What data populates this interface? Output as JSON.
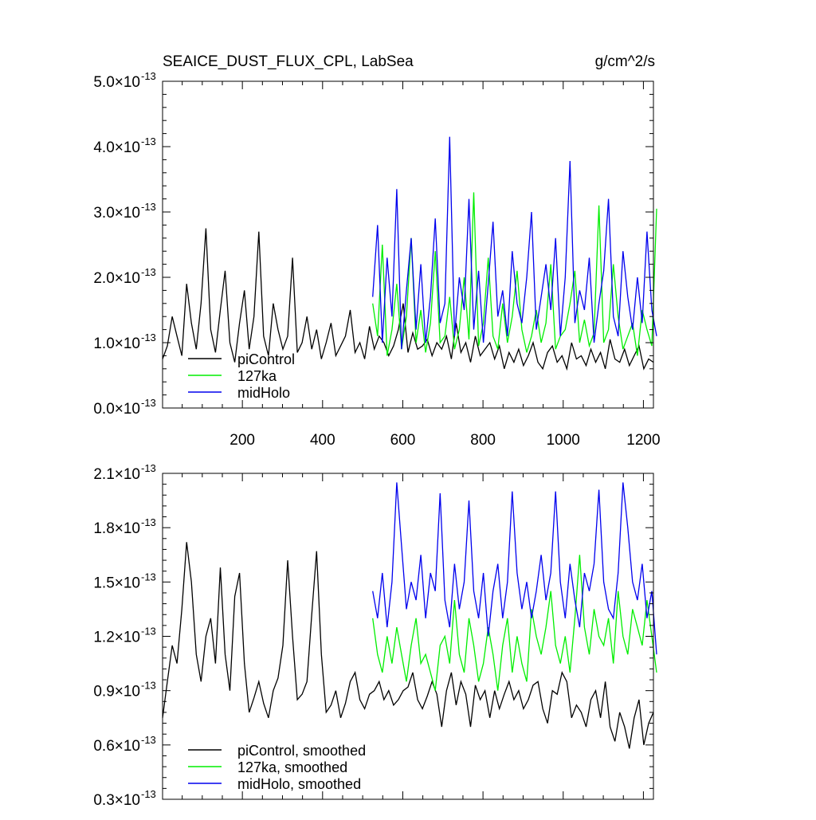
{
  "title": {
    "left": "SEAICE_DUST_FLUX_CPL, LabSea",
    "right": "g/cm^2/s"
  },
  "chart_data": [
    {
      "type": "line",
      "xlim": [
        1,
        1225
      ],
      "ylim": [
        0.0,
        5e-13
      ],
      "x_ticks": [
        200,
        400,
        600,
        800,
        1000,
        1200
      ],
      "x_tick_labels": [
        "200",
        "400",
        "600",
        "800",
        "1000",
        "1200"
      ],
      "y_ticks": [
        0.0,
        1e-13,
        2e-13,
        3e-13,
        4e-13,
        5e-13
      ],
      "y_tick_mantissas": [
        "0.0",
        "1.0",
        "2.0",
        "3.0",
        "4.0",
        "5.0"
      ],
      "y_tick_exponent": "-13",
      "legend_position": "bottom-left",
      "series": [
        {
          "name": "piControl",
          "color": "#000000",
          "x_start": 1,
          "x_step": 12,
          "values": [
            0.75,
            0.95,
            1.4,
            1.1,
            0.8,
            1.9,
            1.3,
            0.9,
            1.6,
            2.75,
            1.2,
            0.85,
            1.5,
            2.1,
            1.0,
            0.7,
            1.3,
            1.8,
            0.9,
            1.4,
            2.7,
            1.1,
            0.8,
            1.6,
            1.2,
            0.9,
            1.1,
            2.3,
            0.85,
            1.0,
            1.4,
            0.9,
            1.2,
            0.75,
            1.0,
            1.3,
            0.8,
            0.95,
            1.1,
            1.5,
            0.85,
            1.0,
            0.75,
            1.25,
            0.9,
            1.1,
            1.0,
            0.8,
            0.95,
            1.2,
            1.6,
            0.85,
            1.15,
            0.9,
            0.95,
            1.05,
            0.8,
            1.0,
            0.9,
            1.1,
            0.75,
            1.3,
            0.85,
            1.0,
            0.7,
            1.1,
            0.8,
            0.9,
            1.0,
            0.75,
            0.95,
            0.6,
            0.85,
            0.7,
            0.9,
            0.65,
            0.8,
            1.0,
            0.7,
            0.6,
            0.85,
            0.95,
            0.7,
            0.8,
            0.6,
            1.0,
            0.75,
            0.8,
            0.65,
            0.9,
            0.7,
            0.85,
            0.6,
            1.05,
            0.75,
            0.7,
            0.9,
            0.65,
            0.8,
            0.95,
            0.6,
            0.75,
            0.7
          ]
        },
        {
          "name": "127ka",
          "color": "#00ee00",
          "x_start": 525,
          "x_step": 12,
          "values": [
            1.6,
            1.1,
            2.5,
            0.8,
            1.2,
            1.9,
            0.9,
            1.4,
            2.6,
            1.0,
            1.5,
            0.85,
            1.3,
            2.4,
            1.0,
            1.1,
            1.7,
            0.9,
            1.2,
            2.0,
            1.05,
            3.3,
            0.95,
            1.3,
            2.3,
            1.1,
            0.9,
            1.6,
            1.0,
            1.4,
            2.1,
            1.2,
            0.85,
            1.1,
            1.5,
            1.0,
            1.3,
            2.2,
            0.9,
            1.1,
            1.2,
            1.6,
            2.1,
            1.0,
            1.35,
            0.95,
            1.15,
            3.1,
            1.0,
            1.2,
            2.2,
            1.4,
            0.9,
            1.1,
            1.3,
            0.8,
            1.5,
            1.2,
            0.95,
            3.05
          ]
        },
        {
          "name": "midHolo",
          "color": "#0000ee",
          "x_start": 525,
          "x_step": 12,
          "values": [
            1.7,
            2.8,
            1.0,
            2.3,
            1.4,
            3.35,
            0.9,
            1.8,
            2.6,
            1.2,
            2.2,
            1.0,
            1.7,
            2.9,
            1.3,
            1.6,
            4.15,
            1.1,
            2.0,
            1.5,
            3.2,
            1.2,
            2.1,
            1.0,
            1.9,
            2.85,
            1.4,
            1.8,
            1.1,
            2.4,
            1.6,
            1.3,
            2.0,
            3.0,
            1.2,
            1.7,
            2.2,
            1.5,
            2.6,
            1.1,
            2.0,
            3.78,
            1.3,
            1.8,
            1.5,
            2.3,
            1.0,
            1.6,
            2.1,
            3.2,
            1.4,
            1.1,
            2.4,
            1.7,
            1.2,
            2.0,
            1.3,
            2.7,
            1.5,
            1.1
          ]
        }
      ]
    },
    {
      "type": "line",
      "xlim": [
        1,
        1225
      ],
      "ylim": [
        3e-14,
        2.1e-13
      ],
      "x_ticks": [
        200,
        400,
        600,
        800,
        1000,
        1200
      ],
      "y_ticks": [
        3e-14,
        6e-14,
        9e-14,
        1.2e-13,
        1.5e-13,
        1.8e-13,
        2.1e-13
      ],
      "y_tick_mantissas": [
        "0.3",
        "0.6",
        "0.9",
        "1.2",
        "1.5",
        "1.8",
        "2.1"
      ],
      "y_tick_exponent": "-13",
      "legend_position": "bottom-left",
      "series": [
        {
          "name": "piControl, smoothed",
          "color": "#000000",
          "x_start": 1,
          "x_step": 12,
          "values": [
            0.75,
            0.95,
            1.15,
            1.05,
            1.35,
            1.72,
            1.5,
            1.1,
            0.95,
            1.2,
            1.3,
            1.05,
            1.58,
            1.1,
            0.9,
            1.42,
            1.55,
            1.05,
            0.78,
            0.86,
            0.95,
            0.83,
            0.75,
            0.9,
            0.97,
            1.15,
            1.62,
            1.2,
            0.85,
            0.88,
            0.95,
            1.32,
            1.67,
            1.1,
            0.78,
            0.82,
            0.9,
            0.75,
            0.83,
            0.95,
            1.0,
            0.85,
            0.8,
            0.88,
            0.9,
            0.95,
            0.85,
            0.9,
            0.82,
            0.85,
            0.9,
            0.92,
            1.0,
            0.85,
            0.8,
            0.87,
            0.95,
            0.88,
            0.7,
            0.9,
            1.0,
            0.82,
            0.95,
            0.88,
            0.7,
            0.93,
            0.85,
            0.9,
            0.75,
            0.9,
            0.8,
            0.88,
            0.95,
            0.85,
            0.9,
            0.8,
            0.85,
            0.93,
            0.95,
            0.8,
            0.72,
            0.9,
            0.88,
            1.0,
            0.95,
            0.75,
            0.82,
            0.78,
            0.7,
            0.85,
            0.9,
            0.75,
            0.95,
            0.7,
            0.62,
            0.78,
            0.7,
            0.58,
            0.75,
            0.85,
            0.6,
            0.72,
            0.78
          ]
        },
        {
          "name": "127ka, smoothed",
          "color": "#00ee00",
          "x_start": 525,
          "x_step": 12,
          "values": [
            1.3,
            1.1,
            1.0,
            1.2,
            1.05,
            1.25,
            1.1,
            0.95,
            1.15,
            1.3,
            1.05,
            1.1,
            1.0,
            0.9,
            1.15,
            1.2,
            1.05,
            1.4,
            1.1,
            1.0,
            1.3,
            1.15,
            0.95,
            1.05,
            1.25,
            1.1,
            0.9,
            1.15,
            1.3,
            1.0,
            1.2,
            1.05,
            0.95,
            1.35,
            1.2,
            1.1,
            1.25,
            1.45,
            1.15,
            1.05,
            1.2,
            1.0,
            1.3,
            1.65,
            1.25,
            1.1,
            1.35,
            1.2,
            1.15,
            1.3,
            1.05,
            1.45,
            1.2,
            1.1,
            1.35,
            1.25,
            1.15,
            1.4,
            1.2,
            1.0
          ]
        },
        {
          "name": "midHolo, smoothed",
          "color": "#0000ee",
          "x_start": 525,
          "x_step": 12,
          "values": [
            1.45,
            1.3,
            1.55,
            1.25,
            1.5,
            2.05,
            1.7,
            1.35,
            1.5,
            1.4,
            1.65,
            1.3,
            1.55,
            1.45,
            1.99,
            1.4,
            1.25,
            1.6,
            1.35,
            1.5,
            1.95,
            1.45,
            1.3,
            1.55,
            1.2,
            1.45,
            1.6,
            1.3,
            1.5,
            2.0,
            1.55,
            1.35,
            1.5,
            1.3,
            1.45,
            1.65,
            1.4,
            1.55,
            2.0,
            1.5,
            1.3,
            1.6,
            1.4,
            1.25,
            1.55,
            1.45,
            1.6,
            2.01,
            1.5,
            1.35,
            1.3,
            1.55,
            2.05,
            1.8,
            1.5,
            1.4,
            1.6,
            1.3,
            1.45,
            1.1
          ]
        }
      ]
    }
  ]
}
